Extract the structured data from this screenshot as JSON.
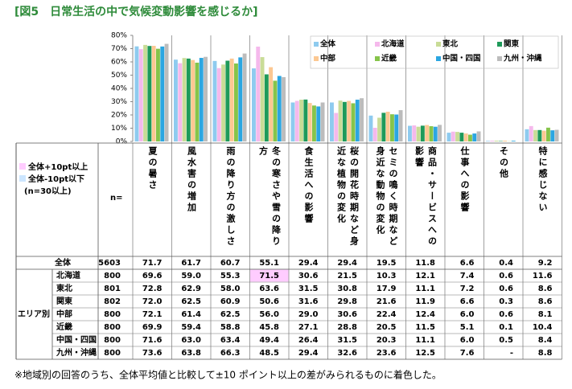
{
  "title": "[図5　日常生活の中で気候変動影響を感じるか]",
  "chart_data": {
    "type": "bar",
    "categories": [
      "夏の暑さ",
      "風水害の増加",
      "雨の降り方の激しさ",
      "冬の寒さや雪の降り方",
      "食生活への影響",
      "桜の開花時期など身近な植物の変化",
      "セミの鳴く時期など身近な動物の変化",
      "商品・サービスへの影響",
      "仕事への影響",
      "その他",
      "特に感じない"
    ],
    "ylim": [
      0,
      80
    ],
    "yticks": [
      {
        "value": 0,
        "label": "0%"
      },
      {
        "value": 10,
        "label": "10%"
      },
      {
        "value": 20,
        "label": "20%"
      },
      {
        "value": 30,
        "label": "30%"
      },
      {
        "value": 40,
        "label": "40%"
      },
      {
        "value": 50,
        "label": "50%"
      },
      {
        "value": 60,
        "label": "60%"
      },
      {
        "value": 70,
        "label": "70%"
      },
      {
        "value": 80,
        "label": "80%"
      }
    ],
    "series": [
      {
        "name": "全体",
        "color": "#8ecbef",
        "n": 5603,
        "values": [
          71.7,
          61.7,
          60.7,
          55.1,
          29.4,
          29.4,
          19.5,
          11.8,
          6.6,
          0.4,
          9.2
        ],
        "value_labels": [
          "71.7",
          "61.7",
          "60.7",
          "55.1",
          "29.4",
          "29.4",
          "19.5",
          "11.8",
          "6.6",
          "0.4",
          "9.2"
        ]
      },
      {
        "name": "北海道",
        "color": "#f5b9ec",
        "n": 800,
        "values": [
          69.6,
          59.0,
          55.3,
          71.5,
          30.6,
          21.5,
          10.3,
          12.1,
          7.4,
          0.6,
          11.6
        ],
        "value_labels": [
          "69.6",
          "59.0",
          "55.3",
          "71.5",
          "30.6",
          "21.5",
          "10.3",
          "12.1",
          "7.4",
          "0.6",
          "11.6"
        ]
      },
      {
        "name": "東北",
        "color": "#c9dc97",
        "n": 801,
        "values": [
          72.8,
          62.9,
          58.0,
          63.6,
          31.5,
          30.8,
          17.9,
          11.1,
          7.2,
          0.6,
          8.6
        ],
        "value_labels": [
          "72.8",
          "62.9",
          "58.0",
          "63.6",
          "31.5",
          "30.8",
          "17.9",
          "11.1",
          "7.2",
          "0.6",
          "8.6"
        ]
      },
      {
        "name": "関東",
        "color": "#1e9a5a",
        "n": 802,
        "values": [
          72.0,
          62.5,
          60.9,
          50.6,
          31.6,
          29.8,
          21.6,
          11.9,
          6.6,
          0.3,
          8.6
        ],
        "value_labels": [
          "72.0",
          "62.5",
          "60.9",
          "50.6",
          "31.6",
          "29.8",
          "21.6",
          "11.9",
          "6.6",
          "0.3",
          "8.6"
        ]
      },
      {
        "name": "中部",
        "color": "#fcc892",
        "n": 800,
        "values": [
          72.1,
          61.4,
          62.5,
          56.0,
          29.0,
          30.6,
          22.4,
          12.4,
          6.0,
          0.6,
          8.1
        ],
        "value_labels": [
          "72.1",
          "61.4",
          "62.5",
          "56.0",
          "29.0",
          "30.6",
          "22.4",
          "12.4",
          "6.0",
          "0.6",
          "8.1"
        ]
      },
      {
        "name": "近畿",
        "color": "#86c44a",
        "n": 800,
        "values": [
          69.9,
          59.4,
          58.8,
          45.8,
          27.1,
          28.8,
          20.5,
          11.5,
          5.1,
          0.1,
          10.4
        ],
        "value_labels": [
          "69.9",
          "59.4",
          "58.8",
          "45.8",
          "27.1",
          "28.8",
          "20.5",
          "11.5",
          "5.1",
          "0.1",
          "10.4"
        ]
      },
      {
        "name": "中国・四国",
        "color": "#2ba6e1",
        "n": 800,
        "values": [
          71.6,
          63.0,
          63.4,
          49.4,
          26.4,
          31.5,
          20.3,
          11.1,
          6.0,
          0.5,
          8.4
        ],
        "value_labels": [
          "71.6",
          "63.0",
          "63.4",
          "49.4",
          "26.4",
          "31.5",
          "20.3",
          "11.1",
          "6.0",
          "0.5",
          "8.4"
        ]
      },
      {
        "name": "九州・沖縄",
        "color": "#bcbcbc",
        "n": 800,
        "values": [
          73.6,
          63.8,
          66.3,
          48.5,
          29.4,
          32.6,
          23.6,
          12.5,
          7.6,
          null,
          8.8
        ],
        "value_labels": [
          "73.6",
          "63.8",
          "66.3",
          "48.5",
          "29.4",
          "32.6",
          "23.6",
          "12.5",
          "7.6",
          "-",
          "8.8"
        ]
      }
    ],
    "table": {
      "key": [
        {
          "label": "全体+10pt以上",
          "color": "#ffccff"
        },
        {
          "label": "全体-10pt以下",
          "color": "#cce6ff"
        }
      ],
      "key_note": "(n=30以上)",
      "n_label": "n=",
      "group_label": "エリア別",
      "highlighted": [
        {
          "series": 1,
          "category": 3,
          "key": 0
        }
      ]
    }
  },
  "footnote": "※地域別の回答のうち、全体平均値と比較して±10 ポイント以上の差がみられるものに着色した。"
}
